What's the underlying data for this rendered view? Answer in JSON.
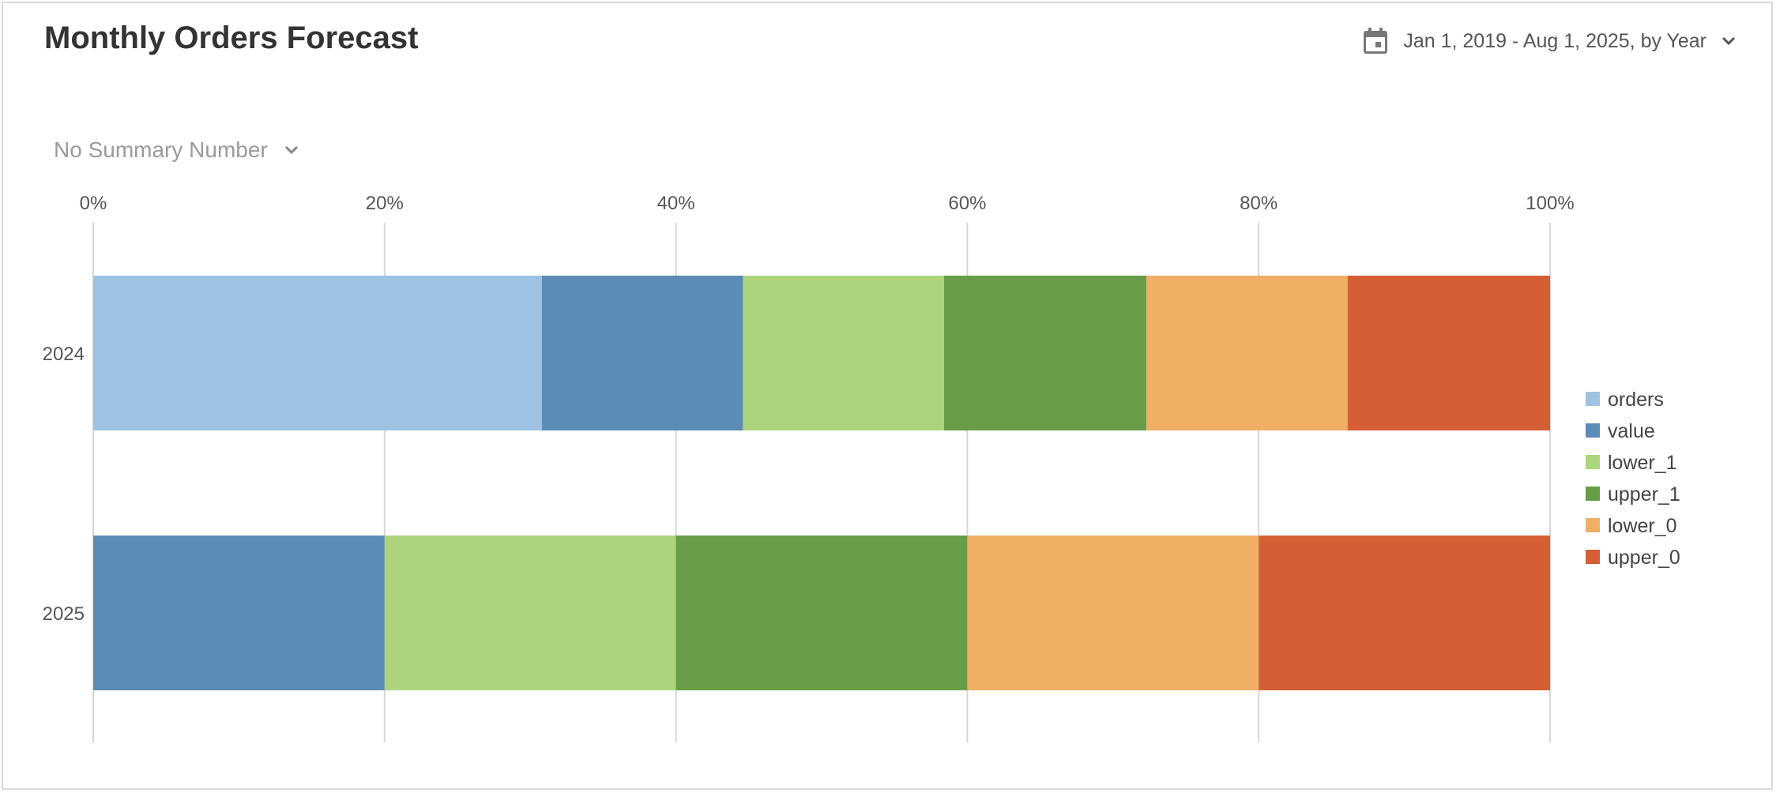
{
  "header": {
    "title": "Monthly Orders Forecast",
    "date_range": "Jan 1, 2019 - Aug 1, 2025, by Year",
    "date_icon": "calendar-icon",
    "dropdown_icon": "chevron-down-icon"
  },
  "summary": {
    "label": "No Summary Number",
    "dropdown_icon": "chevron-down-icon"
  },
  "chart_data": {
    "type": "bar",
    "orientation": "horizontal",
    "stacked": "percent",
    "categories": [
      "2024",
      "2025"
    ],
    "series": [
      {
        "name": "orders",
        "color": "#9cc3e2",
        "values": [
          30.8,
          0
        ]
      },
      {
        "name": "value",
        "color": "#5b8cb6",
        "values": [
          13.8,
          20
        ]
      },
      {
        "name": "lower_1",
        "color": "#acd47d",
        "values": [
          13.8,
          20
        ]
      },
      {
        "name": "upper_1",
        "color": "#679d47",
        "values": [
          13.9,
          20
        ]
      },
      {
        "name": "lower_0",
        "color": "#f0af65",
        "values": [
          13.8,
          20
        ]
      },
      {
        "name": "upper_0",
        "color": "#d55f35",
        "values": [
          13.9,
          20
        ]
      }
    ],
    "x_ticks": [
      "0%",
      "20%",
      "40%",
      "60%",
      "80%",
      "100%"
    ],
    "xlim": [
      0,
      100
    ],
    "grid": true,
    "legend_position": "right"
  }
}
